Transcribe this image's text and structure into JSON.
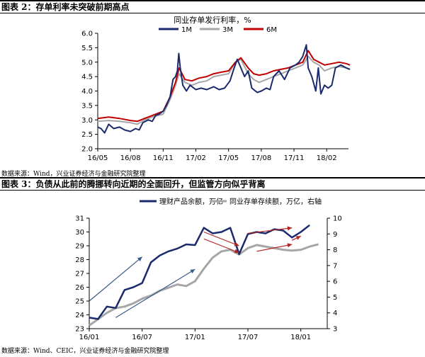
{
  "figure2": {
    "title": "图表 2：存单利率未突破前期高点",
    "source": "数据来源：Wind，兴业证券经济与金融研究院整理"
  },
  "figure3": {
    "title": "图表 3：负债从此前的腾挪转向近期的全面回升，但监管方向似乎背离",
    "source": "数据来源：Wind、CEIC，兴业证券经济与金融研究院整理"
  },
  "chart_data": [
    {
      "type": "line",
      "title": "同业存单发行利率，%",
      "x_ticks": [
        "16/05",
        "16/08",
        "16/11",
        "17/02",
        "17/05",
        "17/08",
        "17/11",
        "18/02"
      ],
      "y_ticks": [
        "2.0",
        "2.5",
        "3.0",
        "3.5",
        "4.0",
        "4.5",
        "5.0",
        "5.5",
        "6.0"
      ],
      "ylim": [
        2.0,
        6.0
      ],
      "xlim_months": [
        "2016-05",
        "2018-04"
      ],
      "grid": false,
      "legend_position": "top-center",
      "series": [
        {
          "name": "1M",
          "color": "#1a2a6c",
          "points": [
            [
              "2016-05-01",
              2.75
            ],
            [
              "2016-05-10",
              2.7
            ],
            [
              "2016-05-20",
              2.55
            ],
            [
              "2016-06-01",
              2.85
            ],
            [
              "2016-06-15",
              2.7
            ],
            [
              "2016-07-01",
              2.75
            ],
            [
              "2016-07-15",
              2.65
            ],
            [
              "2016-08-01",
              2.6
            ],
            [
              "2016-08-15",
              2.7
            ],
            [
              "2016-08-25",
              2.65
            ],
            [
              "2016-09-05",
              2.9
            ],
            [
              "2016-09-20",
              3.0
            ],
            [
              "2016-10-01",
              2.95
            ],
            [
              "2016-10-10",
              3.15
            ],
            [
              "2016-10-20",
              3.2
            ],
            [
              "2016-11-01",
              3.3
            ],
            [
              "2016-11-10",
              3.5
            ],
            [
              "2016-11-20",
              3.8
            ],
            [
              "2016-11-28",
              4.4
            ],
            [
              "2016-12-05",
              4.5
            ],
            [
              "2016-12-10",
              4.7
            ],
            [
              "2016-12-14",
              5.3
            ],
            [
              "2016-12-18",
              4.8
            ],
            [
              "2016-12-25",
              4.2
            ],
            [
              "2017-01-05",
              4.0
            ],
            [
              "2017-01-15",
              4.2
            ],
            [
              "2017-02-01",
              4.05
            ],
            [
              "2017-02-15",
              4.1
            ],
            [
              "2017-03-01",
              4.05
            ],
            [
              "2017-03-20",
              4.15
            ],
            [
              "2017-04-05",
              4.05
            ],
            [
              "2017-04-20",
              4.1
            ],
            [
              "2017-05-05",
              4.35
            ],
            [
              "2017-05-15",
              4.75
            ],
            [
              "2017-05-25",
              5.1
            ],
            [
              "2017-06-05",
              4.8
            ],
            [
              "2017-06-15",
              4.5
            ],
            [
              "2017-06-25",
              4.7
            ],
            [
              "2017-07-05",
              4.1
            ],
            [
              "2017-07-20",
              3.95
            ],
            [
              "2017-08-01",
              4.0
            ],
            [
              "2017-08-15",
              4.1
            ],
            [
              "2017-08-25",
              4.05
            ],
            [
              "2017-09-05",
              4.5
            ],
            [
              "2017-09-20",
              4.7
            ],
            [
              "2017-10-05",
              4.4
            ],
            [
              "2017-10-20",
              4.8
            ],
            [
              "2017-11-05",
              4.9
            ],
            [
              "2017-11-15",
              5.0
            ],
            [
              "2017-11-25",
              5.2
            ],
            [
              "2017-12-05",
              5.6
            ],
            [
              "2017-12-10",
              4.8
            ],
            [
              "2017-12-20",
              4.5
            ],
            [
              "2018-01-01",
              4.0
            ],
            [
              "2018-01-08",
              4.8
            ],
            [
              "2018-01-15",
              3.9
            ],
            [
              "2018-01-25",
              4.2
            ],
            [
              "2018-02-05",
              4.1
            ],
            [
              "2018-02-15",
              4.2
            ],
            [
              "2018-02-25",
              4.8
            ],
            [
              "2018-03-10",
              4.9
            ],
            [
              "2018-03-25",
              4.8
            ],
            [
              "2018-04-05",
              4.75
            ]
          ]
        },
        {
          "name": "3M",
          "color": "#a6a6a6",
          "points": [
            [
              "2016-05-01",
              2.95
            ],
            [
              "2016-06-01",
              2.98
            ],
            [
              "2016-07-01",
              2.95
            ],
            [
              "2016-08-01",
              2.9
            ],
            [
              "2016-08-20",
              2.85
            ],
            [
              "2016-09-10",
              3.0
            ],
            [
              "2016-10-01",
              3.1
            ],
            [
              "2016-11-01",
              3.2
            ],
            [
              "2016-11-20",
              3.7
            ],
            [
              "2016-12-05",
              4.2
            ],
            [
              "2016-12-15",
              4.6
            ],
            [
              "2017-01-01",
              4.3
            ],
            [
              "2017-01-20",
              4.2
            ],
            [
              "2017-02-10",
              4.3
            ],
            [
              "2017-03-01",
              4.35
            ],
            [
              "2017-03-20",
              4.5
            ],
            [
              "2017-04-10",
              4.55
            ],
            [
              "2017-05-01",
              4.6
            ],
            [
              "2017-05-20",
              5.0
            ],
            [
              "2017-06-05",
              5.1
            ],
            [
              "2017-06-25",
              4.6
            ],
            [
              "2017-07-10",
              4.4
            ],
            [
              "2017-07-25",
              4.3
            ],
            [
              "2017-08-15",
              4.4
            ],
            [
              "2017-09-05",
              4.5
            ],
            [
              "2017-09-25",
              4.6
            ],
            [
              "2017-10-15",
              4.7
            ],
            [
              "2017-11-05",
              4.8
            ],
            [
              "2017-11-25",
              4.9
            ],
            [
              "2017-12-10",
              5.2
            ],
            [
              "2017-12-25",
              5.0
            ],
            [
              "2018-01-10",
              4.9
            ],
            [
              "2018-01-25",
              4.7
            ],
            [
              "2018-02-15",
              4.8
            ],
            [
              "2018-03-05",
              4.85
            ],
            [
              "2018-03-25",
              4.8
            ],
            [
              "2018-04-05",
              4.75
            ]
          ]
        },
        {
          "name": "6M",
          "color": "#c00000",
          "points": [
            [
              "2016-05-01",
              3.05
            ],
            [
              "2016-06-01",
              3.1
            ],
            [
              "2016-07-01",
              3.05
            ],
            [
              "2016-08-01",
              2.98
            ],
            [
              "2016-08-20",
              2.95
            ],
            [
              "2016-09-10",
              3.05
            ],
            [
              "2016-10-01",
              3.15
            ],
            [
              "2016-11-01",
              3.3
            ],
            [
              "2016-11-20",
              3.8
            ],
            [
              "2016-12-05",
              4.3
            ],
            [
              "2016-12-15",
              4.8
            ],
            [
              "2017-01-01",
              4.4
            ],
            [
              "2017-01-20",
              4.35
            ],
            [
              "2017-02-10",
              4.45
            ],
            [
              "2017-03-01",
              4.5
            ],
            [
              "2017-03-20",
              4.6
            ],
            [
              "2017-04-10",
              4.65
            ],
            [
              "2017-05-01",
              4.7
            ],
            [
              "2017-05-20",
              5.0
            ],
            [
              "2017-06-05",
              5.15
            ],
            [
              "2017-06-25",
              4.8
            ],
            [
              "2017-07-10",
              4.6
            ],
            [
              "2017-07-25",
              4.55
            ],
            [
              "2017-08-15",
              4.6
            ],
            [
              "2017-09-05",
              4.7
            ],
            [
              "2017-09-25",
              4.75
            ],
            [
              "2017-10-15",
              4.8
            ],
            [
              "2017-11-05",
              4.9
            ],
            [
              "2017-11-25",
              5.0
            ],
            [
              "2017-12-10",
              5.4
            ],
            [
              "2017-12-25",
              5.1
            ],
            [
              "2018-01-10",
              5.0
            ],
            [
              "2018-01-25",
              4.9
            ],
            [
              "2018-02-15",
              4.95
            ],
            [
              "2018-03-05",
              5.0
            ],
            [
              "2018-03-25",
              4.95
            ],
            [
              "2018-04-05",
              4.9
            ]
          ]
        }
      ]
    },
    {
      "type": "line",
      "x_ticks": [
        "16/01",
        "16/07",
        "17/01",
        "17/07",
        "18/01"
      ],
      "xlim_months": [
        "2016-01",
        "2018-04"
      ],
      "y_left_ticks": [
        "23",
        "24",
        "25",
        "26",
        "27",
        "28",
        "29",
        "30",
        "31"
      ],
      "y_right_ticks": [
        "3",
        "4",
        "5",
        "6",
        "7",
        "8",
        "9",
        "10"
      ],
      "ylim_left": [
        23,
        31
      ],
      "ylim_right": [
        3,
        10
      ],
      "grid": false,
      "legend_position": "top-center",
      "series": [
        {
          "name": "理财产品余额，万亿",
          "axis": "left",
          "color": "#1a2a6c",
          "points": [
            [
              "2016-01",
              23.8
            ],
            [
              "2016-02",
              23.7
            ],
            [
              "2016-03",
              24.6
            ],
            [
              "2016-04",
              24.5
            ],
            [
              "2016-05",
              25.8
            ],
            [
              "2016-06",
              26.0
            ],
            [
              "2016-07",
              26.3
            ],
            [
              "2016-08",
              27.8
            ],
            [
              "2016-09",
              28.3
            ],
            [
              "2016-10",
              28.6
            ],
            [
              "2016-11",
              28.8
            ],
            [
              "2016-12",
              29.1
            ],
            [
              "2017-01",
              29.05
            ],
            [
              "2017-02",
              30.3
            ],
            [
              "2017-03",
              29.9
            ],
            [
              "2017-04",
              30.0
            ],
            [
              "2017-05",
              30.3
            ],
            [
              "2017-06",
              28.4
            ],
            [
              "2017-07",
              29.85
            ],
            [
              "2017-08",
              30.0
            ],
            [
              "2017-09",
              29.9
            ],
            [
              "2017-10",
              30.2
            ],
            [
              "2017-11",
              30.1
            ],
            [
              "2017-12",
              29.6
            ],
            [
              "2018-01",
              30.0
            ],
            [
              "2018-02",
              30.5
            ]
          ]
        },
        {
          "name": "同业存单存续额，万亿，右轴",
          "axis": "right",
          "color": "#a6a6a6",
          "points": [
            [
              "2016-01",
              3.2
            ],
            [
              "2016-02",
              3.6
            ],
            [
              "2016-03",
              4.0
            ],
            [
              "2016-04",
              4.3
            ],
            [
              "2016-05",
              4.4
            ],
            [
              "2016-06",
              4.6
            ],
            [
              "2016-07",
              4.9
            ],
            [
              "2016-08",
              5.1
            ],
            [
              "2016-09",
              5.4
            ],
            [
              "2016-10",
              5.6
            ],
            [
              "2016-11",
              5.8
            ],
            [
              "2016-12",
              5.7
            ],
            [
              "2017-01",
              6.0
            ],
            [
              "2017-02",
              6.8
            ],
            [
              "2017-03",
              7.5
            ],
            [
              "2017-04",
              7.9
            ],
            [
              "2017-05",
              8.0
            ],
            [
              "2017-06",
              7.7
            ],
            [
              "2017-07",
              8.1
            ],
            [
              "2017-08",
              8.3
            ],
            [
              "2017-09",
              8.2
            ],
            [
              "2017-10",
              8.1
            ],
            [
              "2017-11",
              8.0
            ],
            [
              "2017-12",
              7.95
            ],
            [
              "2018-01",
              8.0
            ],
            [
              "2018-02",
              8.2
            ],
            [
              "2018-03",
              8.35
            ]
          ]
        }
      ],
      "arrows": [
        {
          "color": "#3a5a8c",
          "from": [
            "2016-01",
            25.0
          ],
          "to": [
            "2016-07",
            28.2
          ]
        },
        {
          "color": "#3a5a8c",
          "from": [
            "2016-04",
            23.8
          ],
          "to": [
            "2017-01",
            27.3
          ]
        },
        {
          "color": "#b22222",
          "from": [
            "2017-02",
            30.0
          ],
          "to": [
            "2017-06",
            29.0
          ]
        },
        {
          "color": "#b22222",
          "from": [
            "2017-02",
            29.5
          ],
          "to": [
            "2017-06",
            28.5
          ]
        },
        {
          "color": "#b22222",
          "from": [
            "2017-07",
            29.9
          ],
          "to": [
            "2017-12",
            30.3
          ]
        },
        {
          "color": "#b22222",
          "from": [
            "2017-08",
            28.6
          ],
          "to": [
            "2017-12",
            29.1
          ]
        },
        {
          "color": "#b22222",
          "from": [
            "2017-12",
            29.4
          ],
          "to": [
            "2018-01",
            29.7
          ]
        }
      ]
    }
  ]
}
